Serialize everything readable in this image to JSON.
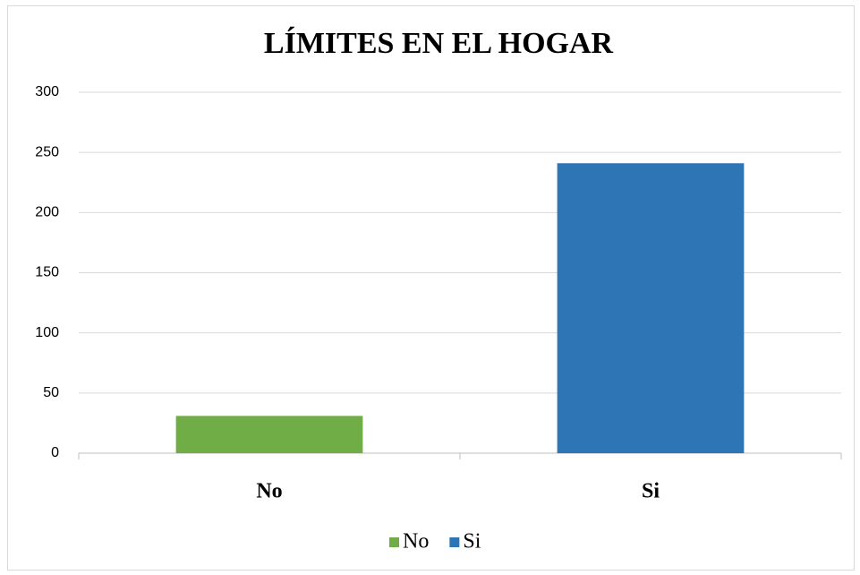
{
  "chart_data": {
    "type": "bar",
    "title": "LÍMITES EN EL HOGAR",
    "categories": [
      "No",
      "Si"
    ],
    "values": [
      31,
      241
    ],
    "colors": [
      "#70ad47",
      "#2e75b6"
    ],
    "ylim": [
      0,
      300
    ],
    "yticks": [
      0,
      50,
      100,
      150,
      200,
      250,
      300
    ],
    "grid": true,
    "legend": "bottom"
  }
}
